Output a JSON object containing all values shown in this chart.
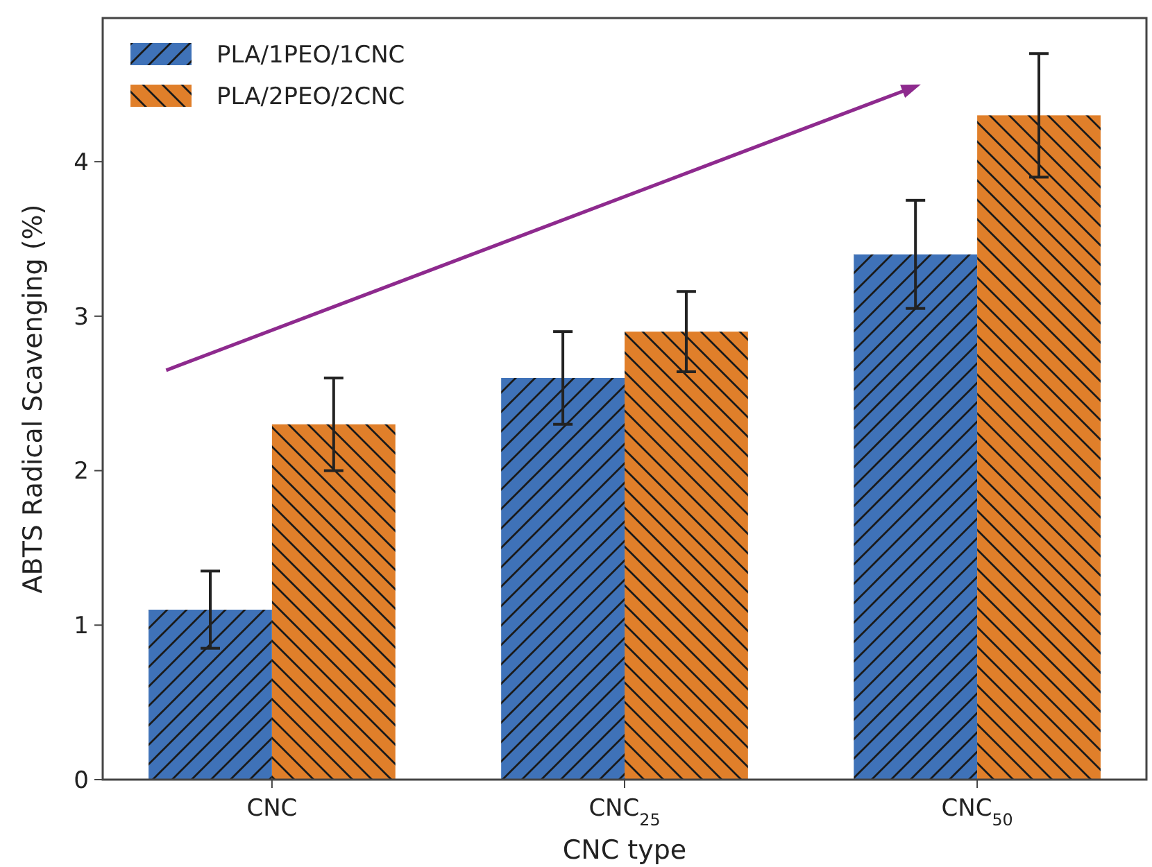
{
  "chart_data": {
    "type": "bar",
    "xlabel": "CNC type",
    "ylabel": "ABTS Radical Scavenging (%)",
    "categories": [
      "CNC",
      "CNC$_{25}$",
      "CNC$_{50}$"
    ],
    "series": [
      {
        "name": "PLA/1PEO/1CNC",
        "color": "#3f72b8",
        "values": [
          1.1,
          2.6,
          3.4
        ],
        "errors": [
          0.25,
          0.3,
          0.35
        ]
      },
      {
        "name": "PLA/2PEO/2CNC",
        "color": "#e07f2a",
        "values": [
          2.3,
          2.9,
          4.3
        ],
        "errors": [
          0.3,
          0.26,
          0.4
        ]
      }
    ],
    "ylim": [
      0,
      4.93
    ],
    "yticks": [
      0,
      1,
      2,
      3,
      4
    ],
    "grid": false,
    "legend": "top left"
  }
}
